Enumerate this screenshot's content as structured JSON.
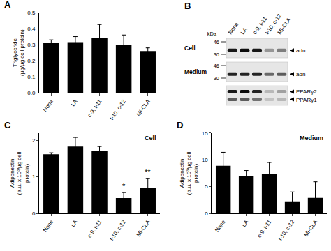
{
  "chart_data": [
    {
      "panel": "A",
      "type": "bar",
      "y_label": "Triglyceride (µg/µg cell protein)",
      "categories": [
        "None",
        "LA",
        "c-9, t-11",
        "t-10, c-12",
        "MI-CLA"
      ],
      "values": [
        0.31,
        0.315,
        0.34,
        0.3,
        0.26
      ],
      "errors": [
        0.02,
        0.035,
        0.085,
        0.06,
        0.02
      ],
      "color": "#000000",
      "ylim": [
        0,
        0.5
      ],
      "yticks": [
        {
          "value": 0,
          "label": "0.0"
        },
        0.1,
        0.2,
        0.3,
        0.4,
        0.5
      ]
    },
    {
      "panel": "C",
      "type": "bar",
      "title": "Cell",
      "y_label": "Adiponectin (a.u. x 10³/µg cell protein)",
      "categories": [
        "None",
        "LA",
        "c-9, t-11",
        "t-10, c-12",
        "MI-CLA"
      ],
      "values": [
        1.62,
        1.83,
        1.7,
        0.42,
        0.7
      ],
      "errors": [
        0.04,
        0.25,
        0.13,
        0.15,
        0.25
      ],
      "color": "#000000",
      "ylim": [
        0,
        2.2
      ],
      "yticks": [
        0,
        1,
        2
      ],
      "annotations": [
        {
          "category": "t-10, c-12",
          "text": "*"
        },
        {
          "category": "MI-CLA",
          "text": "**"
        }
      ]
    },
    {
      "panel": "D",
      "type": "bar",
      "title": "Medium",
      "y_label": "Adiponectin (a.u. x 10³/µg cell protein)",
      "categories": [
        "None",
        "LA",
        "c-9, t-11",
        "t-10, c-12",
        "MI-CLA"
      ],
      "values": [
        8.9,
        7.0,
        7.4,
        2.1,
        2.9
      ],
      "errors": [
        2.5,
        1.0,
        2.1,
        1.9,
        3.0
      ],
      "color": "#000000",
      "ylim": [
        0,
        15
      ],
      "yticks": [
        0,
        5,
        10,
        15
      ]
    }
  ],
  "blot": {
    "panel": "B",
    "lanes": [
      "None",
      "LA",
      "c-9, t-11",
      "t-10, c-12",
      "MI-CLA"
    ],
    "kda_label": "kDa",
    "rows": [
      {
        "label": "Cell",
        "markers": [
          46,
          30
        ],
        "targets": [
          {
            "label": "adn",
            "bands": [
              0.9,
              0.95,
              0.9,
              0.35,
              0.45
            ]
          }
        ]
      },
      {
        "label": "Medium",
        "markers": [
          46,
          30
        ],
        "targets": [
          {
            "label": "adn",
            "bands": [
              0.85,
              0.85,
              0.85,
              0.55,
              0.6
            ]
          }
        ]
      },
      {
        "targets": [
          {
            "label": "PPARγ2",
            "bands": [
              0.9,
              0.95,
              0.85,
              0.2,
              0.3
            ]
          },
          {
            "label": "PPARγ1",
            "bands": [
              0.6,
              0.6,
              0.5,
              0.15,
              0.2
            ]
          }
        ]
      }
    ]
  }
}
